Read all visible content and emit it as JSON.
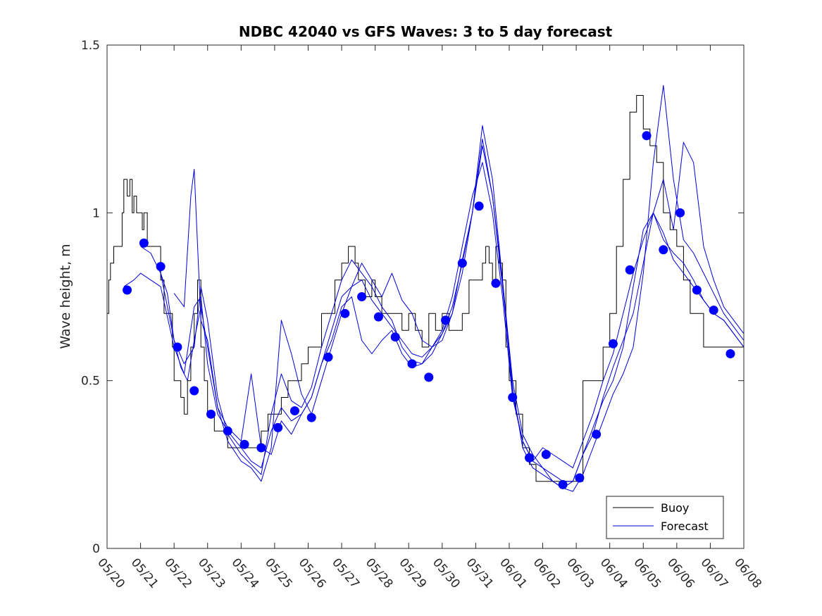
{
  "chart_data": {
    "type": "line",
    "title": "NDBC 42040 vs GFS Waves: 3 to 5 day forecast",
    "xlabel": "",
    "ylabel": "Wave height, m",
    "xlim": [
      "05/20",
      "06/08"
    ],
    "ylim": [
      0,
      1.5
    ],
    "x_ticks": [
      "05/20",
      "05/21",
      "05/22",
      "05/23",
      "05/24",
      "05/25",
      "05/26",
      "05/27",
      "05/28",
      "05/29",
      "05/30",
      "05/31",
      "06/01",
      "06/02",
      "06/03",
      "06/04",
      "06/05",
      "06/06",
      "06/07",
      "06/08"
    ],
    "y_ticks": [
      0,
      0.5,
      1,
      1.5
    ],
    "y_tick_labels": [
      "0",
      "0.5",
      "1",
      "1.5"
    ],
    "grid": false,
    "legend": {
      "position": "bottom-right",
      "entries": [
        {
          "label": "Buoy",
          "color": "#000000"
        },
        {
          "label": "Forecast",
          "color": "#0000cc"
        }
      ]
    },
    "colors": {
      "buoy": "#000000",
      "forecast": "#0000dd",
      "points": "#0000ff"
    },
    "series": [
      {
        "name": "Buoy",
        "style": "step",
        "x_day": [
          0,
          0.05,
          0.1,
          0.2,
          0.3,
          0.45,
          0.5,
          0.6,
          0.68,
          0.75,
          0.8,
          0.88,
          1.0,
          1.05,
          1.1,
          1.2,
          1.3,
          1.5,
          1.6,
          1.7,
          1.8,
          1.95,
          2.0,
          2.1,
          2.2,
          2.3,
          2.4,
          2.5,
          2.6,
          2.7,
          2.8,
          2.9,
          3.0,
          3.1,
          3.2,
          3.4,
          3.6,
          3.8,
          4.0,
          4.4,
          4.6,
          4.8,
          5.0,
          5.2,
          5.4,
          5.6,
          5.8,
          6.0,
          6.2,
          6.4,
          6.6,
          6.8,
          7.0,
          7.2,
          7.4,
          7.5,
          7.7,
          7.9,
          8.0,
          8.2,
          8.4,
          8.6,
          8.8,
          9.0,
          9.2,
          9.4,
          9.5,
          9.6,
          9.8,
          10.0,
          10.2,
          10.4,
          10.6,
          10.8,
          11.0,
          11.2,
          11.3,
          11.4,
          11.5,
          11.6,
          11.7,
          11.8,
          11.9,
          12.0,
          12.2,
          12.4,
          12.6,
          12.8,
          13.0,
          13.5,
          14.0,
          14.2,
          14.4,
          14.6,
          14.8,
          15.0,
          15.2,
          15.4,
          15.6,
          15.8,
          16.0,
          16.2,
          16.4,
          16.6,
          16.8,
          17.0,
          17.2,
          17.4,
          17.6,
          17.8,
          18.0,
          18.4,
          18.8,
          19.0
        ],
        "y": [
          0.7,
          0.8,
          0.85,
          0.9,
          0.9,
          1.0,
          1.1,
          1.05,
          1.1,
          1.0,
          1.05,
          1.0,
          1.0,
          0.95,
          1.0,
          0.9,
          0.9,
          0.9,
          0.8,
          0.7,
          0.7,
          0.6,
          0.5,
          0.5,
          0.45,
          0.4,
          0.5,
          0.6,
          0.7,
          0.8,
          0.6,
          0.5,
          0.4,
          0.4,
          0.35,
          0.35,
          0.3,
          0.3,
          0.3,
          0.3,
          0.35,
          0.4,
          0.4,
          0.45,
          0.5,
          0.5,
          0.55,
          0.6,
          0.6,
          0.7,
          0.7,
          0.8,
          0.85,
          0.9,
          0.85,
          0.8,
          0.75,
          0.8,
          0.75,
          0.7,
          0.7,
          0.7,
          0.65,
          0.7,
          0.65,
          0.6,
          0.6,
          0.7,
          0.65,
          0.7,
          0.65,
          0.65,
          0.7,
          0.8,
          0.8,
          0.85,
          0.9,
          0.85,
          0.8,
          0.9,
          0.85,
          0.8,
          0.6,
          0.5,
          0.4,
          0.3,
          0.25,
          0.2,
          0.2,
          0.2,
          0.2,
          0.5,
          0.5,
          0.5,
          0.6,
          0.7,
          0.9,
          1.1,
          1.3,
          1.35,
          1.25,
          1.2,
          1.15,
          1.0,
          0.95,
          0.9,
          0.8,
          0.7,
          0.7,
          0.6,
          0.6,
          0.6,
          0.6,
          0.6
        ]
      },
      {
        "name": "Forecast",
        "style": "line",
        "x_day": [
          0.5,
          0.8,
          1.0,
          1.3,
          1.6,
          2.0,
          2.3,
          2.6,
          2.8,
          3.0,
          3.3,
          3.6,
          4.0,
          4.3,
          4.6,
          4.9,
          5.2,
          5.5,
          5.8,
          6.1,
          6.4,
          6.7,
          7.0,
          7.3,
          7.6,
          7.9,
          8.2,
          8.5,
          8.8,
          9.1,
          9.4,
          9.7,
          10.0,
          10.3,
          10.6,
          10.9,
          11.2,
          11.5,
          11.8,
          12.1,
          12.4,
          12.7,
          13.0,
          13.3,
          13.6,
          13.9,
          14.2,
          14.5,
          14.8,
          15.1,
          15.4,
          15.7,
          16.0,
          16.3,
          16.6,
          16.9,
          17.2,
          17.5,
          17.8,
          18.1,
          18.4,
          18.7,
          19.0
        ],
        "y": [
          0.78,
          0.8,
          0.82,
          0.8,
          0.78,
          0.6,
          0.52,
          0.72,
          0.75,
          0.55,
          0.4,
          0.35,
          0.3,
          0.26,
          0.24,
          0.35,
          0.42,
          0.38,
          0.4,
          0.45,
          0.55,
          0.65,
          0.75,
          0.78,
          0.8,
          0.74,
          0.7,
          0.66,
          0.62,
          0.58,
          0.57,
          0.6,
          0.65,
          0.75,
          0.9,
          1.05,
          1.15,
          1.0,
          0.75,
          0.45,
          0.32,
          0.26,
          0.24,
          0.22,
          0.2,
          0.2,
          0.28,
          0.36,
          0.44,
          0.5,
          0.6,
          0.78,
          0.95,
          1.0,
          0.92,
          0.88,
          0.85,
          0.8,
          0.74,
          0.7,
          0.68,
          0.64,
          0.6
        ]
      },
      {
        "name": "",
        "style": "line",
        "x_day": [
          1.0,
          1.3,
          1.6,
          2.0,
          2.3,
          2.6,
          2.8,
          3.0,
          3.3,
          3.6,
          4.0,
          4.3,
          4.6,
          4.9,
          5.2,
          5.5,
          5.8,
          6.1,
          6.4,
          6.7,
          7.0,
          7.3,
          7.6,
          7.9,
          8.2,
          8.5,
          8.8,
          9.1,
          9.4,
          9.7,
          10.0,
          10.3,
          10.6,
          10.9,
          11.2,
          11.5,
          11.8,
          12.1,
          12.4,
          12.7,
          13.0,
          13.3,
          13.6,
          13.9,
          14.2,
          14.5,
          14.8,
          15.1,
          15.4,
          15.7,
          16.0,
          16.3,
          16.6,
          16.9,
          17.2,
          17.5,
          17.8,
          18.1,
          18.4,
          18.7,
          19.0
        ],
        "y": [
          0.9,
          0.88,
          0.82,
          0.62,
          0.55,
          0.6,
          0.78,
          0.68,
          0.45,
          0.34,
          0.28,
          0.25,
          0.22,
          0.4,
          0.52,
          0.44,
          0.42,
          0.48,
          0.6,
          0.7,
          0.8,
          0.86,
          0.82,
          0.78,
          0.72,
          0.68,
          0.6,
          0.56,
          0.55,
          0.58,
          0.64,
          0.72,
          0.85,
          1.0,
          1.26,
          1.1,
          0.8,
          0.5,
          0.34,
          0.28,
          0.24,
          0.2,
          0.18,
          0.17,
          0.22,
          0.3,
          0.38,
          0.46,
          0.52,
          0.6,
          0.82,
          1.15,
          1.38,
          1.1,
          0.92,
          0.88,
          0.82,
          0.76,
          0.7,
          0.66,
          0.62
        ]
      },
      {
        "name": "",
        "style": "line",
        "x_day": [
          1.5,
          1.8,
          2.0,
          2.2,
          2.4,
          2.6,
          2.8,
          3.0,
          3.3,
          3.6,
          4.0,
          4.3,
          4.6,
          4.9,
          5.2,
          5.5,
          5.8,
          6.1,
          6.4,
          6.7,
          7.0,
          7.3,
          7.6,
          7.9,
          8.2,
          8.5,
          8.8,
          9.1,
          9.4,
          9.7,
          10.0,
          10.3,
          10.6,
          10.9,
          11.2,
          11.5,
          11.8,
          12.1,
          12.4,
          12.7,
          13.0,
          13.3,
          13.6,
          13.9,
          14.2,
          14.5,
          14.8,
          15.1,
          15.4,
          15.7,
          16.0,
          16.3,
          16.6,
          16.9,
          17.2,
          17.5,
          17.8,
          18.1,
          18.4,
          18.7,
          19.0
        ],
        "y": [
          0.85,
          0.76,
          0.62,
          0.54,
          0.5,
          0.62,
          0.72,
          0.6,
          0.42,
          0.32,
          0.26,
          0.24,
          0.2,
          0.3,
          0.68,
          0.58,
          0.46,
          0.4,
          0.5,
          0.6,
          0.7,
          0.78,
          0.85,
          0.8,
          0.75,
          0.82,
          0.74,
          0.7,
          0.62,
          0.6,
          0.62,
          0.7,
          0.82,
          1.0,
          1.22,
          1.05,
          0.78,
          0.48,
          0.3,
          0.24,
          0.22,
          0.2,
          0.18,
          0.2,
          0.28,
          0.34,
          0.45,
          0.54,
          0.62,
          0.7,
          0.85,
          1.0,
          1.1,
          0.95,
          1.21,
          1.15,
          0.9,
          0.8,
          0.72,
          0.68,
          0.64
        ]
      },
      {
        "name": "",
        "style": "line",
        "x_day": [
          2.0,
          2.3,
          2.5,
          2.6,
          2.8,
          3.0,
          3.3,
          3.6,
          4.0,
          4.3,
          4.6,
          4.9,
          5.2,
          5.5,
          5.8,
          6.1,
          6.4,
          6.7,
          7.0,
          7.3,
          7.6,
          7.9,
          8.2,
          8.5,
          8.8,
          9.1,
          9.4,
          9.7,
          10.0,
          10.3,
          10.6,
          10.9,
          11.2,
          11.5,
          11.8,
          12.1,
          12.4,
          12.7,
          13.0,
          13.3,
          13.6,
          13.9,
          14.2,
          14.5,
          14.8,
          15.1,
          15.4,
          15.7,
          16.0,
          16.3,
          16.6,
          16.9,
          17.2,
          17.5,
          17.8,
          18.1,
          18.4,
          18.7,
          19.0
        ],
        "y": [
          0.76,
          0.72,
          1.05,
          1.13,
          0.68,
          0.62,
          0.42,
          0.36,
          0.32,
          0.52,
          0.3,
          0.28,
          0.38,
          0.34,
          0.4,
          0.45,
          0.55,
          0.62,
          0.72,
          0.75,
          0.62,
          0.58,
          0.62,
          0.65,
          0.58,
          0.54,
          0.55,
          0.6,
          0.64,
          0.7,
          0.86,
          1.0,
          1.2,
          1.05,
          0.8,
          0.46,
          0.32,
          0.26,
          0.3,
          0.28,
          0.26,
          0.24,
          0.32,
          0.4,
          0.5,
          0.58,
          0.7,
          0.82,
          0.92,
          1.0,
          0.94,
          0.86,
          0.82,
          0.78,
          0.74,
          0.7,
          0.68,
          0.64,
          0.6
        ]
      },
      {
        "name": "",
        "style": "markers",
        "x_day": [
          0.6,
          1.1,
          1.6,
          2.1,
          2.6,
          3.1,
          3.6,
          4.1,
          4.6,
          5.1,
          5.6,
          6.1,
          6.6,
          7.1,
          7.6,
          8.1,
          8.6,
          9.1,
          9.6,
          10.1,
          10.6,
          11.1,
          11.6,
          12.1,
          12.6,
          13.1,
          13.6,
          14.1,
          14.6,
          15.1,
          15.6,
          16.1,
          16.6,
          17.1,
          17.6,
          18.1,
          18.6
        ],
        "y": [
          0.77,
          0.91,
          0.84,
          0.6,
          0.47,
          0.4,
          0.35,
          0.31,
          0.3,
          0.36,
          0.41,
          0.39,
          0.57,
          0.7,
          0.75,
          0.69,
          0.63,
          0.55,
          0.51,
          0.68,
          0.85,
          1.02,
          0.79,
          0.45,
          0.27,
          0.28,
          0.19,
          0.21,
          0.34,
          0.61,
          0.83,
          1.23,
          0.89,
          1.0,
          0.77,
          0.71,
          0.58
        ]
      }
    ]
  }
}
